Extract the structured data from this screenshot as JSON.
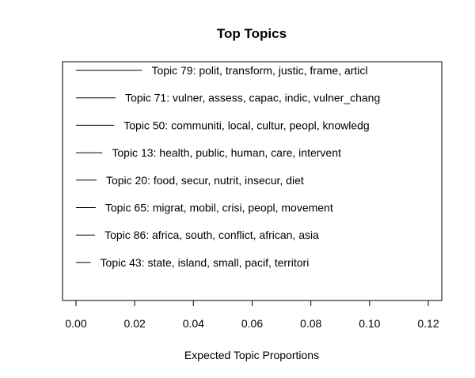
{
  "chart_data": {
    "type": "bar",
    "title": "Top Topics",
    "xlabel": "Expected Topic Proportions",
    "ylabel": "",
    "xlim": [
      0,
      0.12
    ],
    "xticks": [
      "0.00",
      "0.02",
      "0.04",
      "0.06",
      "0.08",
      "0.10",
      "0.12"
    ],
    "grid": false,
    "orientation": "horizontal",
    "categories": [
      "Topic 79: polit, transform, justic, frame, articl",
      "Topic 71: vulner, assess, capac, indic, vulner_chang",
      "Topic 50: communiti, local, cultur, peopl, knowledg",
      "Topic 13: health, public, human, care, intervent",
      "Topic 20: food, secur, nutrit, insecur, diet",
      "Topic 65: migrat, mobil, crisi, peopl, movement",
      "Topic 86: africa, south, conflict, african, asia",
      "Topic 43: state, island, small, pacif, territori"
    ],
    "values": [
      0.0225,
      0.0135,
      0.013,
      0.009,
      0.007,
      0.0067,
      0.0065,
      0.005
    ]
  }
}
